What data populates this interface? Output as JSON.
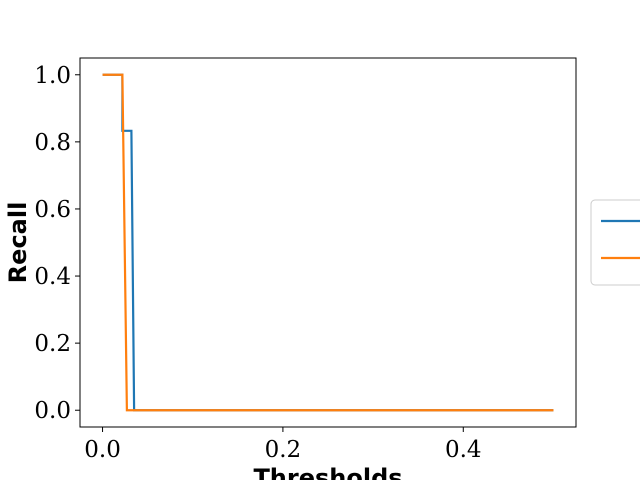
{
  "chart_data": {
    "type": "line",
    "xlabel": "Thresholds",
    "ylabel": "Recall",
    "xlim": [
      -0.025,
      0.525
    ],
    "ylim": [
      -0.05,
      1.05
    ],
    "xticks": [
      0.0,
      0.2,
      0.4
    ],
    "xtick_labels": [
      "0.0",
      "0.2",
      "0.4"
    ],
    "yticks": [
      0.0,
      0.2,
      0.4,
      0.6,
      0.8,
      1.0
    ],
    "ytick_labels": [
      "0.0",
      "0.2",
      "0.4",
      "0.6",
      "0.8",
      "1.0"
    ],
    "grid": false,
    "legend": {
      "placement": "right, outside plot"
    },
    "series": [
      {
        "color": "#1f77b4",
        "x": [
          0.0,
          0.022,
          0.022,
          0.032,
          0.035,
          0.5
        ],
        "y": [
          1.0,
          1.0,
          0.833,
          0.833,
          0.0,
          0.0
        ]
      },
      {
        "color": "#ff7f0e",
        "x": [
          0.0,
          0.022,
          0.027,
          0.5
        ],
        "y": [
          1.0,
          1.0,
          0.0,
          0.0
        ]
      }
    ]
  }
}
